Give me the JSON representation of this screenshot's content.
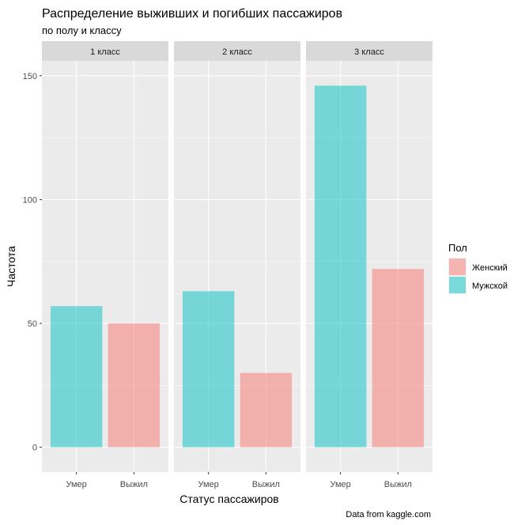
{
  "chart_data": {
    "type": "bar",
    "title": "Распределение выживших и погибших пассажиров",
    "subtitle": "по полу и классу",
    "xlabel": "Статус пассажиров",
    "ylabel": "Частота",
    "caption": "Data from kaggle.com",
    "ylim": [
      -10,
      156
    ],
    "y_ticks": [
      0,
      50,
      100,
      150
    ],
    "categories": [
      "Умер",
      "Выжил"
    ],
    "grid": true,
    "legend": {
      "title": "Пол",
      "position": "right",
      "entries": [
        {
          "name": "Женский",
          "color": "#F8766D"
        },
        {
          "name": "Мужской",
          "color": "#00BFC4"
        }
      ]
    },
    "facets": [
      {
        "label": "1 класс",
        "bars": [
          {
            "category": "Умер",
            "value": 57,
            "series": "Мужской"
          },
          {
            "category": "Выжил",
            "value": 50,
            "series": "Женский"
          }
        ]
      },
      {
        "label": "2 класс",
        "bars": [
          {
            "category": "Умер",
            "value": 63,
            "series": "Мужской"
          },
          {
            "category": "Выжил",
            "value": 30,
            "series": "Женский"
          }
        ]
      },
      {
        "label": "3 класс",
        "bars": [
          {
            "category": "Умер",
            "value": 146,
            "series": "Мужской"
          },
          {
            "category": "Выжил",
            "value": 72,
            "series": "Женский"
          }
        ]
      }
    ]
  }
}
